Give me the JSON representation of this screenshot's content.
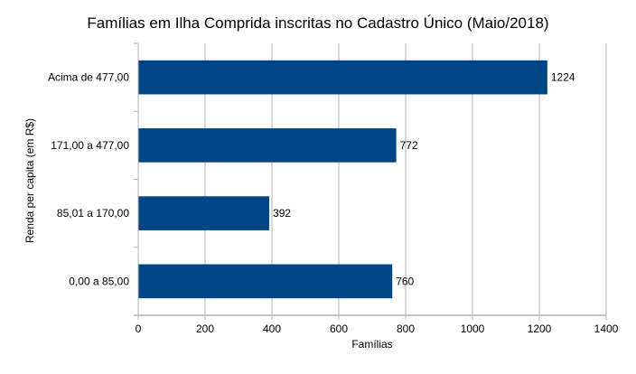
{
  "chart_data": {
    "type": "bar",
    "orientation": "horizontal",
    "title": "Famílias em Ilha Comprida inscritas no Cadastro Único (Maio/2018)",
    "xlabel": "Famílias",
    "ylabel": "Renda per capita (em R$)",
    "categories": [
      "Acima de 477,00",
      "171,00 a 477,00",
      "85,01 a 170,00",
      "0,00 a 85,00"
    ],
    "values": [
      1224,
      772,
      392,
      760
    ],
    "data_labels": [
      "1224",
      "772",
      "392",
      "760"
    ],
    "xlim": [
      0,
      1400
    ],
    "xticks": [
      0,
      200,
      400,
      600,
      800,
      1000,
      1200,
      1400
    ],
    "grid": "vertical",
    "legend": "none",
    "bar_color": "#004586"
  }
}
